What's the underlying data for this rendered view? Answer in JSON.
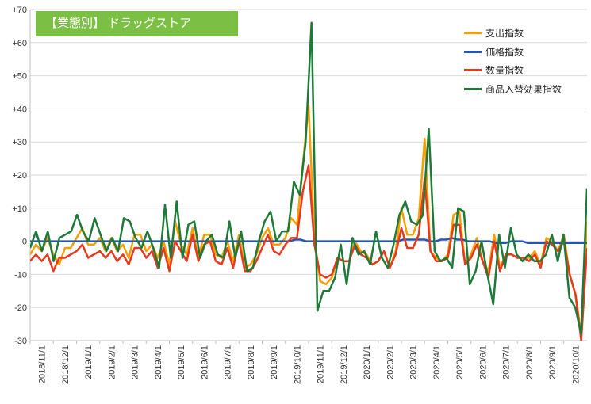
{
  "chart_data": {
    "type": "line",
    "title": "【業態別】 ドラッグストア",
    "xlabel": "",
    "ylabel": "",
    "ylim": [
      -30,
      70
    ],
    "yticks": [
      "+70",
      "+60",
      "+50",
      "+40",
      "+30",
      "+20",
      "+10",
      "0",
      "-10",
      "-20",
      "-30"
    ],
    "xtick_labels": [
      "2018/11/1",
      "2018/12/1",
      "2019/1/1",
      "2019/2/1",
      "2019/3/1",
      "2019/4/1",
      "2019/5/1",
      "2019/6/1",
      "2019/7/1",
      "2019/8/1",
      "2019/9/1",
      "2019/10/1",
      "2019/11/1",
      "2019/12/1",
      "2020/1/1",
      "2020/2/1",
      "2020/3/1",
      "2020/4/1",
      "2020/5/1",
      "2020/6/1",
      "2020/7/1",
      "2020/8/1",
      "2020/9/1",
      "2020/10/1"
    ],
    "x_start": "2018/11/1",
    "x_step": "1 week",
    "grid": "horizontal",
    "legend_position": "top-right",
    "series": [
      {
        "name": "支出指数",
        "color": "#f5a000",
        "values": [
          -4,
          -1,
          -3,
          1,
          -4,
          -7,
          -2,
          -2,
          1,
          4,
          -1,
          -1,
          1,
          -3,
          1,
          -3,
          -1,
          -5,
          2,
          2,
          -3,
          -1,
          -5,
          0,
          -7,
          6,
          -1,
          -4,
          4,
          -5,
          2,
          2,
          -4,
          -5,
          0,
          -6,
          2,
          -8,
          -7,
          -4,
          1,
          4,
          -1,
          -1,
          1,
          7,
          5,
          23,
          41,
          1,
          -12,
          -13,
          -11,
          -5,
          -6,
          -6,
          0,
          -3,
          -4,
          -7,
          -6,
          -3,
          -8,
          -3,
          10,
          2,
          2,
          7,
          31,
          -3,
          -5,
          -6,
          -4,
          8,
          9,
          -7,
          -4,
          1,
          -6,
          -9,
          2,
          -8,
          -4,
          -4,
          -5,
          -5,
          -5,
          -3,
          -7,
          1,
          0,
          -3,
          2,
          -10,
          -16,
          -28,
          6
        ]
      },
      {
        "name": "価格指数",
        "color": "#2457b5",
        "values": [
          0,
          0,
          0,
          0,
          0,
          0,
          0,
          0,
          0,
          0,
          0,
          0,
          0,
          0,
          0,
          0,
          0,
          0,
          0,
          0,
          0,
          0,
          0,
          0,
          0,
          0,
          0,
          0,
          0,
          0,
          0,
          0,
          0,
          0,
          0,
          0,
          0,
          0,
          0,
          0,
          0,
          0,
          0,
          0,
          0,
          0,
          0,
          0,
          0,
          0.5,
          0.5,
          0,
          0,
          0,
          0,
          0,
          0,
          0,
          0,
          0,
          0,
          0,
          0,
          0,
          0,
          0,
          0,
          0,
          0,
          0.5,
          0.5,
          0.5,
          0.5,
          0.5,
          0,
          0,
          0.5,
          0.5,
          1,
          0.5,
          0.5,
          0,
          0,
          0,
          0,
          0,
          -0.5,
          -0.5,
          -0.5,
          0,
          0,
          0,
          -0.5,
          -0.5,
          -0.5,
          -0.5,
          -0.5,
          -0.5,
          -0.5,
          -0.5,
          -0.5,
          -0.5,
          -0.5,
          -0.5
        ]
      },
      {
        "name": "数量指数",
        "color": "#e53a1e",
        "values": [
          -6,
          -4,
          -6,
          -4,
          -9,
          -5,
          -5,
          -4,
          -3,
          -1,
          -5,
          -4,
          -3,
          -5,
          -3,
          -6,
          -4,
          -7,
          -2,
          -2,
          -5,
          -3,
          -8,
          -2,
          -9,
          0,
          -3,
          -6,
          2,
          -6,
          -1,
          0,
          -6,
          -7,
          -2,
          -8,
          0,
          -9,
          -9,
          -6,
          -2,
          2,
          -3,
          -4,
          -1,
          1,
          1,
          15,
          23,
          -1,
          -10,
          -11,
          -10,
          -5,
          -6,
          -6,
          -1,
          -4,
          -5,
          -7,
          -6,
          -3,
          -8,
          -4,
          4,
          -2,
          -2,
          2,
          19,
          -3,
          -6,
          -6,
          -5,
          5,
          5,
          -7,
          -5,
          -1,
          -6,
          -11,
          0,
          -9,
          -4,
          -4,
          -5,
          -5,
          -6,
          -4,
          -8,
          0,
          -1,
          -3,
          0,
          -10,
          -16,
          -30,
          -2
        ]
      },
      {
        "name": "商品入替効果指数",
        "color": "#1f7a3a",
        "values": [
          -2,
          3,
          -3,
          3,
          -6,
          1,
          2,
          3,
          8,
          3,
          0,
          7,
          2,
          -3,
          1,
          -3,
          7,
          6,
          1,
          -2,
          3,
          -2,
          -8,
          11,
          -5,
          12,
          -5,
          5,
          6,
          -5,
          0,
          2,
          -4,
          -5,
          6,
          -5,
          3,
          -9,
          -8,
          0,
          6,
          9,
          0,
          3,
          3,
          18,
          14,
          30,
          66,
          -21,
          -15,
          -15,
          -11,
          -1,
          -13,
          1,
          -4,
          -3,
          -7,
          3,
          -5,
          -8,
          -1,
          8,
          12,
          6,
          5,
          8,
          34,
          -3,
          -6,
          -5,
          -8,
          10,
          9,
          -13,
          -9,
          0,
          -10,
          -19,
          2,
          -8,
          4,
          -4,
          -6,
          -4,
          -6,
          -6,
          -4,
          2,
          -6,
          2,
          -17,
          -20,
          -28,
          16
        ]
      }
    ]
  }
}
